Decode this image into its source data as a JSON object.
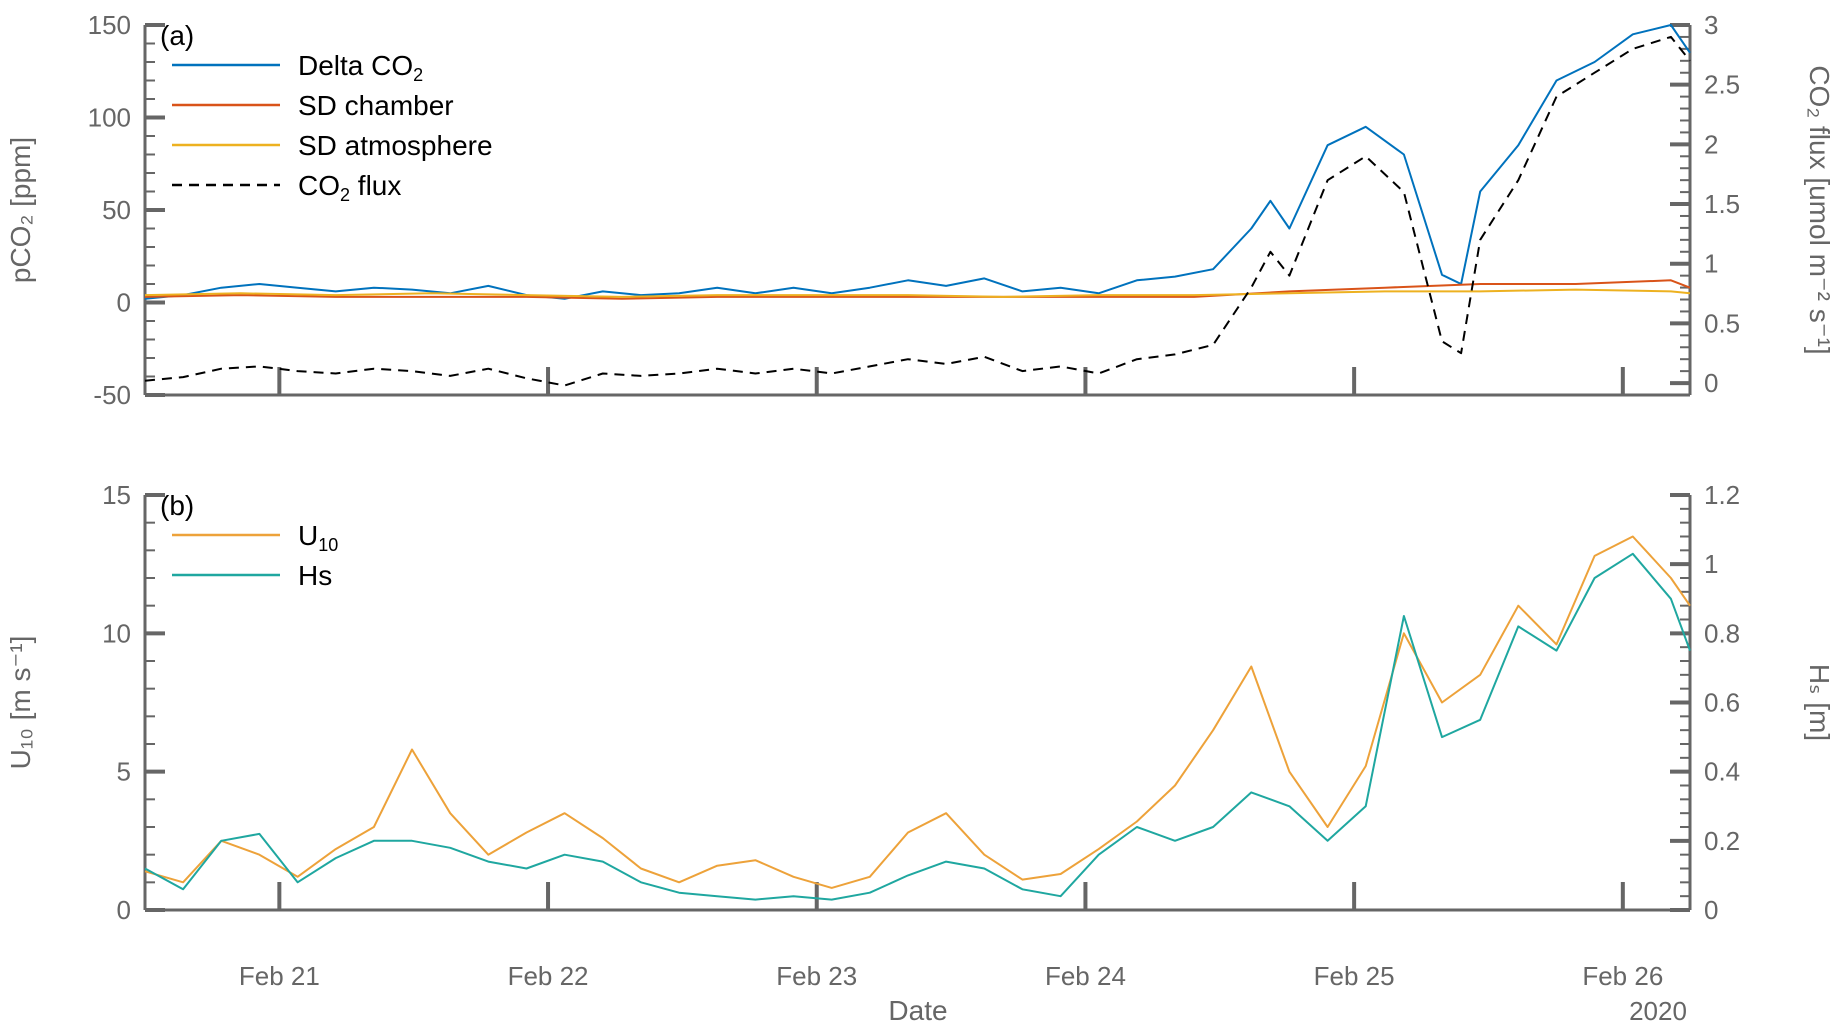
{
  "figure": {
    "xlabel": "Date",
    "year_label": "2020",
    "x_ticks": [
      "Feb 21",
      "Feb 22",
      "Feb 23",
      "Feb 24",
      "Feb 25",
      "Feb 26"
    ]
  },
  "colors": {
    "delta_co2": "#0072BD",
    "sd_chamber": "#D95319",
    "sd_atmosphere": "#EDB120",
    "co2_flux": "#000000",
    "u10": "#EDA23A",
    "hs": "#1FA7A0",
    "axis": "#666666"
  },
  "chart_data": [
    {
      "type": "line",
      "panel_label": "(a)",
      "x_range": [
        "Feb 20 12:00",
        "Feb 26 06:00"
      ],
      "ylabel_left": "pCO₂ [ppm]",
      "ylim_left": [
        -50,
        150
      ],
      "yticks_left": [
        "150",
        "100",
        "50",
        "0",
        "-50"
      ],
      "ylabel_right": "CO₂ flux [umol m⁻² s⁻¹]",
      "ylim_right": [
        -0.1,
        3
      ],
      "yticks_right": [
        "3",
        "2.5",
        "2",
        "1.5",
        "1",
        "0.5",
        "0"
      ],
      "legend_position": "top-left",
      "series": [
        {
          "name": "Delta CO₂",
          "name_main": "Delta CO",
          "name_sub": "2",
          "axis": "left",
          "style": "solid",
          "points": [
            [
              0,
              2
            ],
            [
              0.2,
              4
            ],
            [
              0.4,
              8
            ],
            [
              0.6,
              10
            ],
            [
              0.8,
              8
            ],
            [
              1,
              6
            ],
            [
              1.2,
              8
            ],
            [
              1.4,
              7
            ],
            [
              1.6,
              5
            ],
            [
              1.8,
              9
            ],
            [
              2,
              4
            ],
            [
              2.2,
              2
            ],
            [
              2.4,
              6
            ],
            [
              2.6,
              4
            ],
            [
              2.8,
              5
            ],
            [
              3,
              8
            ],
            [
              3.2,
              5
            ],
            [
              3.4,
              8
            ],
            [
              3.6,
              5
            ],
            [
              3.8,
              8
            ],
            [
              4,
              12
            ],
            [
              4.2,
              9
            ],
            [
              4.4,
              13
            ],
            [
              4.6,
              6
            ],
            [
              4.8,
              8
            ],
            [
              5,
              5
            ],
            [
              5.2,
              12
            ],
            [
              5.4,
              14
            ],
            [
              5.6,
              18
            ],
            [
              5.8,
              40
            ],
            [
              5.9,
              55
            ],
            [
              6,
              40
            ],
            [
              6.2,
              85
            ],
            [
              6.4,
              95
            ],
            [
              6.6,
              80
            ],
            [
              6.8,
              15
            ],
            [
              6.9,
              10
            ],
            [
              7,
              60
            ],
            [
              7.2,
              85
            ],
            [
              7.4,
              120
            ],
            [
              7.6,
              130
            ],
            [
              7.8,
              145
            ],
            [
              8,
              150
            ],
            [
              8.1,
              135
            ]
          ]
        },
        {
          "name": "SD chamber",
          "name_main": "SD chamber",
          "name_sub": "",
          "axis": "left",
          "style": "solid",
          "points": [
            [
              0,
              3
            ],
            [
              0.5,
              4
            ],
            [
              1,
              3
            ],
            [
              1.5,
              3
            ],
            [
              2,
              3
            ],
            [
              2.5,
              2
            ],
            [
              3,
              3
            ],
            [
              3.5,
              3
            ],
            [
              4,
              3
            ],
            [
              4.5,
              3
            ],
            [
              5,
              3
            ],
            [
              5.5,
              3
            ],
            [
              6,
              6
            ],
            [
              6.5,
              8
            ],
            [
              7,
              10
            ],
            [
              7.5,
              10
            ],
            [
              8,
              12
            ],
            [
              8.1,
              8
            ]
          ]
        },
        {
          "name": "SD atmosphere",
          "name_main": "SD atmosphere",
          "name_sub": "",
          "axis": "left",
          "style": "solid",
          "points": [
            [
              0,
              4
            ],
            [
              0.5,
              5
            ],
            [
              1,
              4
            ],
            [
              1.5,
              5
            ],
            [
              2,
              4
            ],
            [
              2.5,
              3
            ],
            [
              3,
              4
            ],
            [
              3.5,
              4
            ],
            [
              4,
              4
            ],
            [
              4.5,
              3
            ],
            [
              5,
              4
            ],
            [
              5.5,
              4
            ],
            [
              6,
              5
            ],
            [
              6.5,
              6
            ],
            [
              7,
              6
            ],
            [
              7.5,
              7
            ],
            [
              8,
              6
            ],
            [
              8.1,
              5
            ]
          ]
        },
        {
          "name": "CO₂ flux",
          "name_main": "CO",
          "name_sub": "2",
          "name_suffix": " flux",
          "axis": "right",
          "style": "dashed",
          "points": [
            [
              0,
              0.02
            ],
            [
              0.2,
              0.05
            ],
            [
              0.4,
              0.12
            ],
            [
              0.6,
              0.14
            ],
            [
              0.8,
              0.1
            ],
            [
              1,
              0.08
            ],
            [
              1.2,
              0.12
            ],
            [
              1.4,
              0.1
            ],
            [
              1.6,
              0.06
            ],
            [
              1.8,
              0.12
            ],
            [
              2,
              0.04
            ],
            [
              2.2,
              -0.02
            ],
            [
              2.4,
              0.08
            ],
            [
              2.6,
              0.06
            ],
            [
              2.8,
              0.08
            ],
            [
              3,
              0.12
            ],
            [
              3.2,
              0.08
            ],
            [
              3.4,
              0.12
            ],
            [
              3.6,
              0.08
            ],
            [
              3.8,
              0.14
            ],
            [
              4,
              0.2
            ],
            [
              4.2,
              0.16
            ],
            [
              4.4,
              0.22
            ],
            [
              4.6,
              0.1
            ],
            [
              4.8,
              0.14
            ],
            [
              5,
              0.08
            ],
            [
              5.2,
              0.2
            ],
            [
              5.4,
              0.24
            ],
            [
              5.6,
              0.32
            ],
            [
              5.8,
              0.8
            ],
            [
              5.9,
              1.1
            ],
            [
              6,
              0.9
            ],
            [
              6.2,
              1.7
            ],
            [
              6.4,
              1.9
            ],
            [
              6.6,
              1.6
            ],
            [
              6.8,
              0.35
            ],
            [
              6.9,
              0.25
            ],
            [
              7,
              1.2
            ],
            [
              7.2,
              1.7
            ],
            [
              7.4,
              2.4
            ],
            [
              7.6,
              2.6
            ],
            [
              7.8,
              2.8
            ],
            [
              8,
              2.9
            ],
            [
              8.1,
              2.7
            ]
          ]
        }
      ]
    },
    {
      "type": "line",
      "panel_label": "(b)",
      "x_range": [
        "Feb 20 12:00",
        "Feb 26 06:00"
      ],
      "ylabel_left": "U₁₀ [m s⁻¹]",
      "ylim_left": [
        0,
        15
      ],
      "yticks_left": [
        "15",
        "10",
        "5",
        "0"
      ],
      "ylabel_right": "Hₛ [m]",
      "ylim_right": [
        0,
        1.2
      ],
      "yticks_right": [
        "1.2",
        "1",
        "0.8",
        "0.6",
        "0.4",
        "0.2",
        "0"
      ],
      "legend_position": "top-left",
      "series": [
        {
          "name": "U₁₀",
          "name_main": "U",
          "name_sub": "10",
          "axis": "left",
          "style": "solid",
          "points": [
            [
              0,
              1.4
            ],
            [
              0.2,
              1
            ],
            [
              0.4,
              2.5
            ],
            [
              0.6,
              2
            ],
            [
              0.8,
              1.2
            ],
            [
              1,
              2.2
            ],
            [
              1.2,
              3
            ],
            [
              1.4,
              5.8
            ],
            [
              1.6,
              3.5
            ],
            [
              1.8,
              2
            ],
            [
              2,
              2.8
            ],
            [
              2.2,
              3.5
            ],
            [
              2.4,
              2.6
            ],
            [
              2.6,
              1.5
            ],
            [
              2.8,
              1
            ],
            [
              3,
              1.6
            ],
            [
              3.2,
              1.8
            ],
            [
              3.4,
              1.2
            ],
            [
              3.6,
              0.8
            ],
            [
              3.8,
              1.2
            ],
            [
              4,
              2.8
            ],
            [
              4.2,
              3.5
            ],
            [
              4.4,
              2
            ],
            [
              4.6,
              1.1
            ],
            [
              4.8,
              1.3
            ],
            [
              5,
              2.2
            ],
            [
              5.2,
              3.2
            ],
            [
              5.4,
              4.5
            ],
            [
              5.6,
              6.5
            ],
            [
              5.8,
              8.8
            ],
            [
              6,
              5
            ],
            [
              6.2,
              3
            ],
            [
              6.4,
              5.2
            ],
            [
              6.6,
              10
            ],
            [
              6.8,
              7.5
            ],
            [
              7,
              8.5
            ],
            [
              7.2,
              11
            ],
            [
              7.4,
              9.6
            ],
            [
              7.6,
              12.8
            ],
            [
              7.8,
              13.5
            ],
            [
              8,
              12
            ],
            [
              8.1,
              11
            ]
          ]
        },
        {
          "name": "Hs",
          "name_main": "Hs",
          "name_sub": "",
          "axis": "right",
          "style": "solid",
          "points": [
            [
              0,
              0.12
            ],
            [
              0.2,
              0.06
            ],
            [
              0.4,
              0.2
            ],
            [
              0.6,
              0.22
            ],
            [
              0.8,
              0.08
            ],
            [
              1,
              0.15
            ],
            [
              1.2,
              0.2
            ],
            [
              1.4,
              0.2
            ],
            [
              1.6,
              0.18
            ],
            [
              1.8,
              0.14
            ],
            [
              2,
              0.12
            ],
            [
              2.2,
              0.16
            ],
            [
              2.4,
              0.14
            ],
            [
              2.6,
              0.08
            ],
            [
              2.8,
              0.05
            ],
            [
              3,
              0.04
            ],
            [
              3.2,
              0.03
            ],
            [
              3.4,
              0.04
            ],
            [
              3.6,
              0.03
            ],
            [
              3.8,
              0.05
            ],
            [
              4,
              0.1
            ],
            [
              4.2,
              0.14
            ],
            [
              4.4,
              0.12
            ],
            [
              4.6,
              0.06
            ],
            [
              4.8,
              0.04
            ],
            [
              5,
              0.16
            ],
            [
              5.2,
              0.24
            ],
            [
              5.4,
              0.2
            ],
            [
              5.6,
              0.24
            ],
            [
              5.8,
              0.34
            ],
            [
              6,
              0.3
            ],
            [
              6.2,
              0.2
            ],
            [
              6.4,
              0.3
            ],
            [
              6.6,
              0.85
            ],
            [
              6.8,
              0.5
            ],
            [
              7,
              0.55
            ],
            [
              7.2,
              0.82
            ],
            [
              7.4,
              0.75
            ],
            [
              7.6,
              0.96
            ],
            [
              7.8,
              1.03
            ],
            [
              8,
              0.9
            ],
            [
              8.1,
              0.75
            ]
          ]
        }
      ]
    }
  ]
}
